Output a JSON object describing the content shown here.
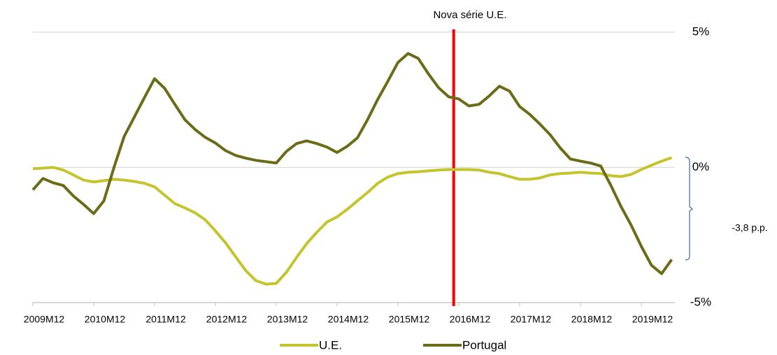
{
  "chart_data": {
    "type": "line",
    "annotations": [
      {
        "text": "Nova série U.E.",
        "color": "#ff0000"
      },
      {
        "text": "-3,8 p.p."
      }
    ],
    "categories": [
      "2009M12",
      null,
      null,
      null,
      null,
      null,
      "2010M12",
      null,
      null,
      null,
      null,
      null,
      "2011M12",
      null,
      null,
      null,
      null,
      null,
      "2012M12",
      null,
      null,
      null,
      null,
      null,
      "2013M12",
      null,
      null,
      null,
      null,
      null,
      "2014M12",
      null,
      null,
      null,
      null,
      null,
      "2015M12",
      null,
      null,
      null,
      null,
      null,
      "2016M12",
      null,
      null,
      null,
      null,
      null,
      "2017M12",
      null,
      null,
      null,
      null,
      null,
      "2018M12",
      null,
      null,
      null,
      null,
      null,
      "2019M12",
      null,
      null,
      null
    ],
    "series": [
      {
        "name": "U.E.",
        "color": "#c4c42c",
        "values": [
          -0.05,
          -0.03,
          0,
          -0.1,
          -0.28,
          -0.47,
          -0.54,
          -0.49,
          -0.44,
          -0.47,
          -0.52,
          -0.59,
          -0.72,
          -1.03,
          -1.34,
          -1.5,
          -1.68,
          -1.94,
          -2.35,
          -2.79,
          -3.31,
          -3.82,
          -4.19,
          -4.32,
          -4.29,
          -3.88,
          -3.33,
          -2.82,
          -2.4,
          -2.02,
          -1.83,
          -1.55,
          -1.24,
          -0.93,
          -0.59,
          -0.36,
          -0.23,
          -0.18,
          -0.16,
          -0.13,
          -0.1,
          -0.08,
          -0.08,
          -0.08,
          -0.1,
          -0.18,
          -0.23,
          -0.34,
          -0.44,
          -0.44,
          -0.39,
          -0.28,
          -0.23,
          -0.21,
          -0.18,
          -0.21,
          -0.23,
          -0.31,
          -0.34,
          -0.26,
          -0.08,
          0.08,
          0.23,
          0.36
        ]
      },
      {
        "name": "Portugal",
        "color": "#6b6b18",
        "values": [
          -0.83,
          -0.41,
          -0.57,
          -0.67,
          -1.06,
          -1.37,
          -1.71,
          -1.24,
          0,
          1.14,
          1.86,
          2.58,
          3.28,
          2.92,
          2.33,
          1.76,
          1.4,
          1.11,
          0.9,
          0.62,
          0.44,
          0.34,
          0.26,
          0.21,
          0.16,
          0.59,
          0.88,
          0.98,
          0.88,
          0.75,
          0.55,
          0.78,
          1.09,
          1.76,
          2.51,
          3.18,
          3.88,
          4.21,
          4.03,
          3.46,
          2.95,
          2.61,
          2.53,
          2.27,
          2.33,
          2.64,
          3.0,
          2.82,
          2.25,
          1.96,
          1.6,
          1.21,
          0.72,
          0.31,
          0.23,
          0.16,
          0.05,
          -0.67,
          -1.45,
          -2.14,
          -2.92,
          -3.62,
          -3.93,
          -3.41
        ]
      }
    ],
    "ylim": [
      -5,
      5
    ],
    "yticks": [
      {
        "value": -5,
        "label": "-5%"
      },
      {
        "value": 0,
        "label": "0%"
      },
      {
        "value": 5,
        "label": "5%"
      }
    ],
    "grid": true,
    "legend": "bottom"
  }
}
